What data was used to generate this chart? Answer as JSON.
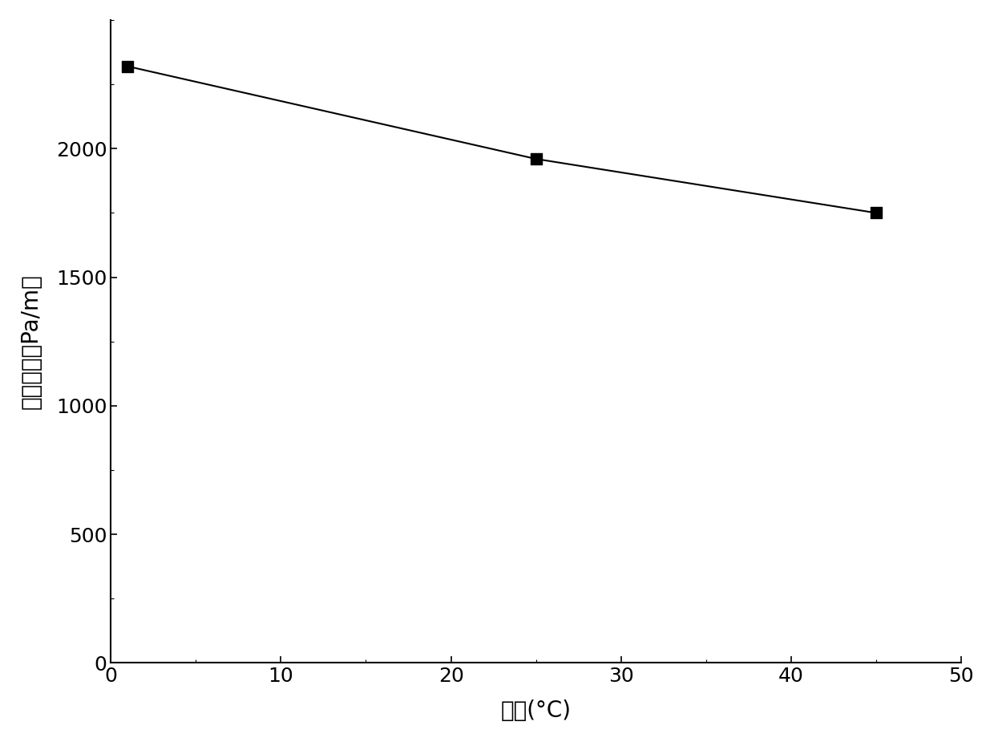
{
  "x_data": [
    1,
    25,
    45
  ],
  "y_data": [
    2320,
    1960,
    1750
  ],
  "line_color": "#000000",
  "marker_color": "#000000",
  "marker_style": "s",
  "marker_size": 10,
  "line_width": 1.5,
  "xlabel": "温度(°C)",
  "ylabel": "阻力损失（Pa/m）",
  "xlim": [
    0,
    50
  ],
  "ylim": [
    0,
    2500
  ],
  "xticks": [
    0,
    10,
    20,
    30,
    40,
    50
  ],
  "yticks": [
    0,
    500,
    1000,
    1500,
    2000
  ],
  "background_color": "#ffffff",
  "xlabel_fontsize": 20,
  "ylabel_fontsize": 20,
  "tick_fontsize": 18,
  "spine_linewidth": 1.5
}
